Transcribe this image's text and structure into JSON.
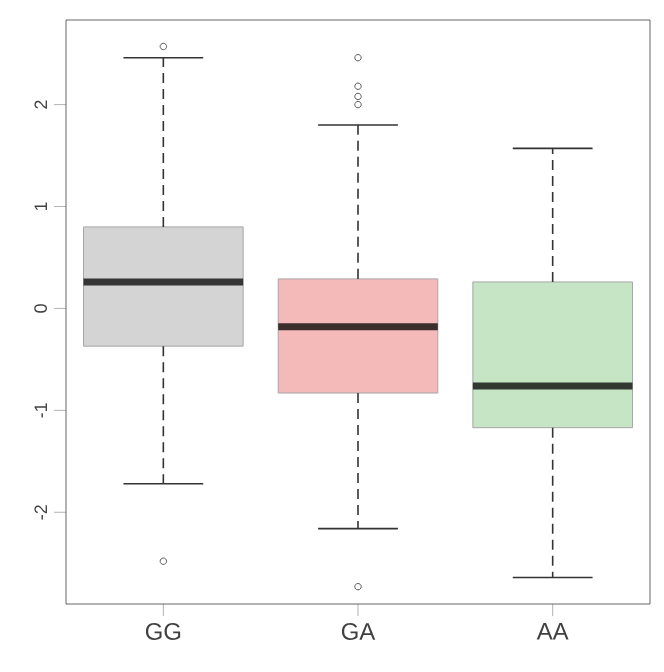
{
  "chart_data": {
    "type": "box",
    "categories": [
      "GG",
      "GA",
      "AA"
    ],
    "boxes": [
      {
        "low": -1.72,
        "q1": -0.37,
        "median": 0.26,
        "q3": 0.8,
        "high": 2.46,
        "outliers": [
          2.57,
          -2.48
        ]
      },
      {
        "low": -2.16,
        "q1": -0.83,
        "median": -0.18,
        "q3": 0.29,
        "high": 1.8,
        "outliers": [
          2.46,
          2.18,
          2.08,
          2.0,
          -2.73
        ]
      },
      {
        "low": -2.64,
        "q1": -1.17,
        "median": -0.76,
        "q3": 0.26,
        "high": 1.57
      }
    ],
    "colors": [
      "#d4d4d4",
      "#f4b9b9",
      "#c6e5c4"
    ],
    "ylim": [
      -2.9,
      2.83
    ],
    "yticks": [
      -2,
      -1,
      0,
      1,
      2
    ],
    "line_style": "dashed",
    "marker": "circle"
  }
}
